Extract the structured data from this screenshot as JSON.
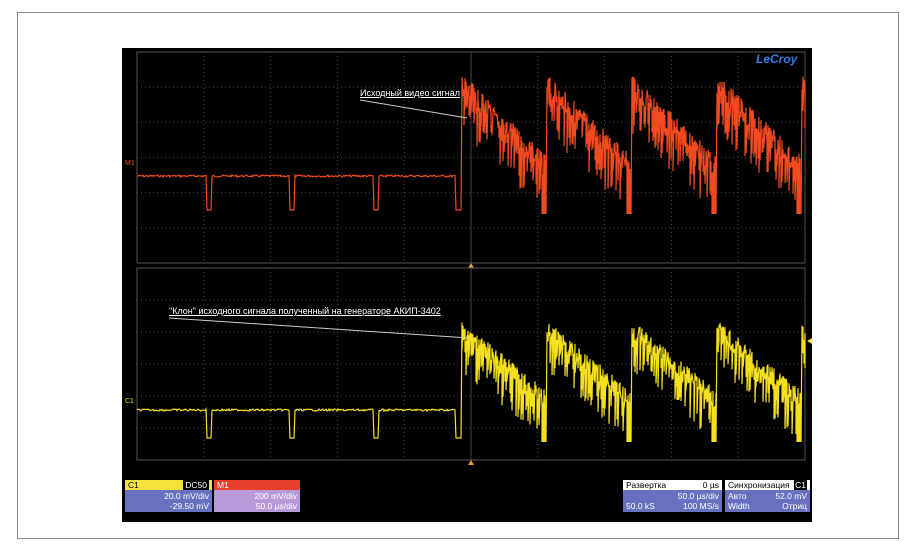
{
  "brand": "LeCroy",
  "annotations": {
    "top": "Исходный видео сигнал",
    "bottom": "\"Клон\" исходного сигнала полученный на генераторе АКИП-3402"
  },
  "trace_labels": {
    "upper": "M1",
    "lower": "C1"
  },
  "channel_c1": {
    "name": "C1",
    "coupling": "DC50",
    "scale": "20.0 mV/div",
    "offset": "-29.50 mV"
  },
  "channel_m1": {
    "name": "M1",
    "scale": "200 mV/div",
    "timebase": "50.0 µs/div"
  },
  "timebase": {
    "title": "Развертка",
    "delay": "0 µs",
    "per_div": "50.0 µs/div",
    "samples": "50.0 kS",
    "rate": "100 MS/s"
  },
  "trigger": {
    "title": "Синхронизация",
    "source": "C1",
    "mode": "Авто",
    "level": "52.0 mV",
    "type": "Width",
    "polarity": "Отриц"
  }
}
